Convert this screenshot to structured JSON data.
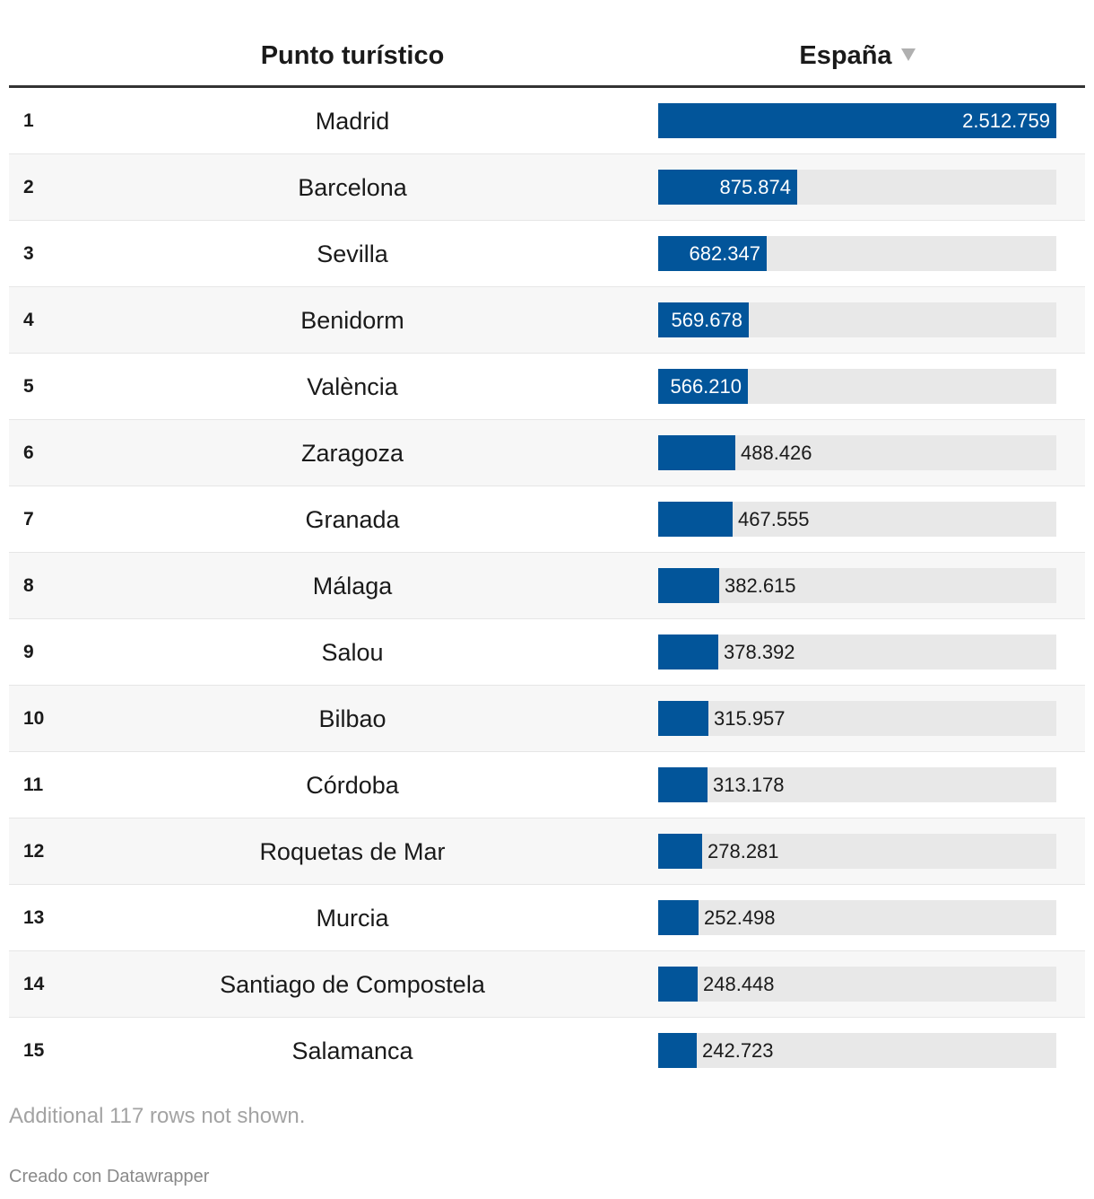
{
  "chart_data": {
    "type": "table",
    "columns": [
      "",
      "Punto turístico",
      "España"
    ],
    "sort_column": "España",
    "sort_direction": "descending",
    "bar_color": "#02559a",
    "track_color": "#e8e8e8",
    "max_value": 2512759,
    "rows": [
      {
        "rank": "1",
        "city": "Madrid",
        "value": 2512759,
        "label": "2.512.759"
      },
      {
        "rank": "2",
        "city": "Barcelona",
        "value": 875874,
        "label": "875.874"
      },
      {
        "rank": "3",
        "city": "Sevilla",
        "value": 682347,
        "label": "682.347"
      },
      {
        "rank": "4",
        "city": "Benidorm",
        "value": 569678,
        "label": "569.678"
      },
      {
        "rank": "5",
        "city": "València",
        "value": 566210,
        "label": "566.210"
      },
      {
        "rank": "6",
        "city": "Zaragoza",
        "value": 488426,
        "label": "488.426"
      },
      {
        "rank": "7",
        "city": "Granada",
        "value": 467555,
        "label": "467.555"
      },
      {
        "rank": "8",
        "city": "Málaga",
        "value": 382615,
        "label": "382.615"
      },
      {
        "rank": "9",
        "city": "Salou",
        "value": 378392,
        "label": "378.392"
      },
      {
        "rank": "10",
        "city": "Bilbao",
        "value": 315957,
        "label": "315.957"
      },
      {
        "rank": "11",
        "city": "Córdoba",
        "value": 313178,
        "label": "313.178"
      },
      {
        "rank": "12",
        "city": "Roquetas de Mar",
        "value": 278281,
        "label": "278.281"
      },
      {
        "rank": "13",
        "city": "Murcia",
        "value": 252498,
        "label": "252.498"
      },
      {
        "rank": "14",
        "city": "Santiago de Compostela",
        "value": 248448,
        "label": "248.448"
      },
      {
        "rank": "15",
        "city": "Salamanca",
        "value": 242723,
        "label": "242.723"
      }
    ]
  },
  "header": {
    "city_label": "Punto turístico",
    "value_label": "España",
    "sort_icon": "sort-descending-icon"
  },
  "footer": {
    "note": "Additional 117 rows not shown.",
    "credit": "Creado con Datawrapper"
  }
}
